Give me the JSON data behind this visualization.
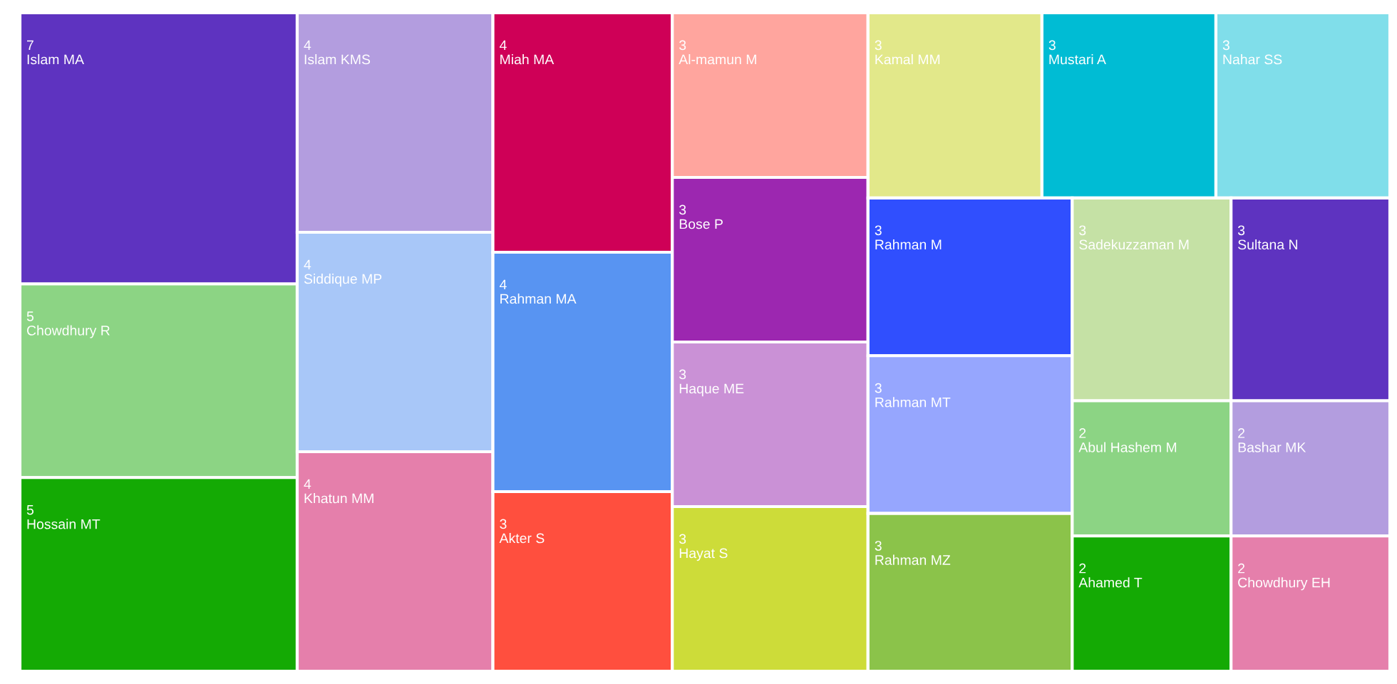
{
  "chart_data": {
    "type": "other",
    "categories": [
      "Islam MA",
      "Chowdhury R",
      "Hossain MT",
      "Islam KMS",
      "Siddique MP",
      "Khatun MM",
      "Miah MA",
      "Rahman MA",
      "Akter S",
      "Al-mamun M",
      "Bose P",
      "Haque ME",
      "Hayat S",
      "Kamal MM",
      "Mustari A",
      "Nahar SS",
      "Rahman M",
      "Rahman MT",
      "Rahman MZ",
      "Sadekuzzaman M",
      "Sultana N",
      "Abul Hashem M",
      "Ahamed T",
      "Bashar MK",
      "Chowdhury EH"
    ],
    "values": [
      7,
      5,
      5,
      4,
      4,
      4,
      4,
      4,
      3,
      3,
      3,
      3,
      3,
      3,
      3,
      3,
      3,
      3,
      3,
      3,
      3,
      2,
      2,
      2,
      2
    ],
    "colors": [
      "#5e33c0",
      "#8cd484",
      "#14aa04",
      "#b39ddf",
      "#a8c7f8",
      "#e57fab",
      "#cf0057",
      "#5894f2",
      "#ff4f3e",
      "#ffa59e",
      "#9c27b0",
      "#ca91d6",
      "#cddc39",
      "#e2e88a",
      "#00bcd4",
      "#80deea",
      "#304ffe",
      "#96a6fe",
      "#8bc34a",
      "#c5e1a5",
      "#5e33c0",
      "#8cd484",
      "#14aa04",
      "#b39ddf",
      "#e57fab"
    ],
    "data_labels": true
  }
}
